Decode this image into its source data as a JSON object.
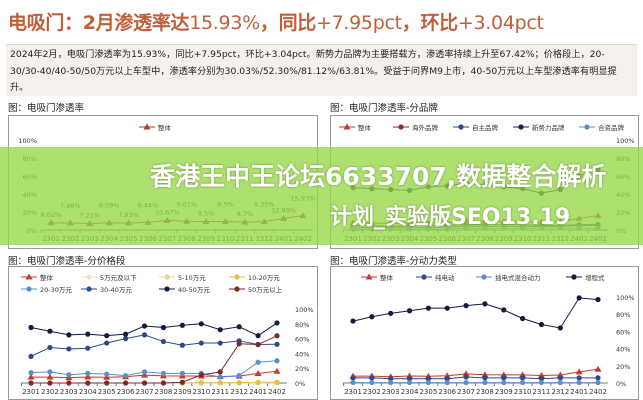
{
  "title": {
    "prefix": "电吸门：2月渗透率达",
    "rate": "15.93%",
    "mid": "，同比",
    "yoy": "+7.95pct",
    "sep": "，环比",
    "mom": "+3.04pct"
  },
  "summary": "2024年2月，电吸门渗透率为15.93%，同比+7.95pct，环比+3.04pct。新势力品牌为主要搭载方，渗透率持续上升至67.42%；价格段上，20-30/30-40/40-50/50万元以上车型中，渗透率分别为30.03%/52.30%/81.12%/63.81%。受益于问界M9上市，40-50万元以上车型渗透率有明显提升。",
  "banner": {
    "line1": "香港王中王论坛6633707,数据整合解析",
    "line2": "计划_实验版SEO13.19"
  },
  "chart_data": [
    {
      "type": "line",
      "title": "图：电吸门渗透率",
      "categories": [
        "2301",
        "2302",
        "2303",
        "2304",
        "2305",
        "2306",
        "2307",
        "2308",
        "2309",
        "2310",
        "2311",
        "2312",
        "2401",
        "2402"
      ],
      "ylim": [
        0,
        100
      ],
      "yticks": [
        "0%",
        "20%",
        "40%",
        "60%",
        "80%",
        "100%"
      ],
      "legend": "top",
      "data_labels": true,
      "series": [
        {
          "name": "整体",
          "color": "#b03a2e",
          "marker": "triangle",
          "values": [
            8.02,
            7.98,
            7.21,
            8.09,
            7.83,
            8.44,
            10.67,
            9.61,
            9.5,
            9.5,
            8.7,
            9.35,
            12.89,
            15.93
          ],
          "labels": [
            "8.02%",
            "7.98%",
            "7.21%",
            "8.09%",
            "7.83%",
            "8.44%",
            "10.67%",
            "9.61%",
            "9.5%",
            "9.5%",
            "8.7%",
            "9.35%",
            "12.89%",
            "15.93%"
          ]
        }
      ]
    },
    {
      "type": "line",
      "title": "图：电吸门渗透率-分品牌",
      "categories": [
        "2301",
        "2302",
        "2303",
        "2304",
        "2305",
        "2306",
        "2307",
        "2308",
        "2309",
        "2310",
        "2311",
        "2312",
        "2401",
        "2402"
      ],
      "ylim": [
        0,
        100
      ],
      "yticks": [
        "0%",
        "20%",
        "40%",
        "60%",
        "80%",
        "100%"
      ],
      "legend": "top",
      "series": [
        {
          "name": "整体",
          "color": "#c0392b",
          "marker": "triangle",
          "values": [
            8.02,
            7.98,
            7.21,
            8.09,
            7.83,
            8.44,
            10.67,
            9.61,
            9.5,
            9.5,
            8.7,
            9.35,
            12.89,
            15.93
          ]
        },
        {
          "name": "海外品牌",
          "color": "#8b2a2a",
          "marker": "circle",
          "values": [
            5,
            5,
            4,
            5,
            5,
            5,
            6,
            6,
            6,
            6,
            5,
            5,
            6,
            6
          ]
        },
        {
          "name": "自主品牌",
          "color": "#2c4a8a",
          "marker": "circle",
          "values": [
            3,
            3,
            3,
            3,
            3,
            3,
            4,
            4,
            4,
            4,
            4,
            4,
            5,
            5
          ]
        },
        {
          "name": "新势力品牌",
          "color": "#1a1f4a",
          "marker": "circle",
          "values": [
            47,
            46,
            45,
            44,
            48,
            49,
            52,
            50,
            48,
            46,
            41,
            45,
            60,
            67.42
          ]
        },
        {
          "name": "合资品牌",
          "color": "#5b8fc7",
          "marker": "circle",
          "values": [
            1,
            1,
            1,
            1,
            1,
            1,
            2,
            2,
            2,
            2,
            2,
            2,
            2,
            2
          ]
        }
      ]
    },
    {
      "type": "line",
      "title": "图：电吸门渗透率-分价格段",
      "categories": [
        "2301",
        "2302",
        "2303",
        "2304",
        "2305",
        "2306",
        "2307",
        "2308",
        "2309",
        "2310",
        "2311",
        "2312",
        "2401",
        "2402"
      ],
      "ylim": [
        0,
        100
      ],
      "yticks": [
        "0%",
        "20%",
        "40%",
        "60%",
        "80%",
        "100%"
      ],
      "legend": "top",
      "series": [
        {
          "name": "整体",
          "color": "#c8382e",
          "marker": "triangle",
          "values": [
            8.02,
            7.98,
            7.21,
            8.09,
            7.83,
            8.44,
            10.67,
            9.61,
            9.5,
            9.5,
            8.7,
            9.35,
            12.89,
            15.93
          ]
        },
        {
          "name": "5万元及以下",
          "color": "#f3e2b0",
          "marker": "circle",
          "values": [
            0,
            0,
            0,
            0,
            0,
            0,
            0,
            0,
            0,
            0,
            0,
            0,
            0,
            0
          ]
        },
        {
          "name": "5-10万元",
          "color": "#e8d39a",
          "marker": "circle",
          "values": [
            0,
            0,
            0,
            0,
            0,
            0,
            0,
            0,
            0,
            0,
            0,
            0,
            0,
            0
          ]
        },
        {
          "name": "10-20万元",
          "color": "#e8c040",
          "marker": "circle",
          "values": [
            0,
            0,
            0,
            0,
            0,
            0,
            0,
            0,
            0,
            0.5,
            0.5,
            0.5,
            1,
            1
          ]
        },
        {
          "name": "20-30万元",
          "color": "#5b8fc7",
          "marker": "circle",
          "values": [
            14,
            15,
            11,
            13,
            12,
            10,
            15,
            13,
            13,
            13,
            8,
            10,
            28,
            30.03
          ]
        },
        {
          "name": "30-40万元",
          "color": "#2c4a8a",
          "marker": "circle",
          "values": [
            36,
            48,
            46,
            47,
            54,
            60,
            65,
            56,
            51,
            54,
            54,
            57,
            52,
            52.3
          ]
        },
        {
          "name": "40-50万元",
          "color": "#141a40",
          "marker": "circle",
          "values": [
            75,
            70,
            65,
            66,
            64,
            66,
            77,
            75,
            78,
            80,
            72,
            76,
            64,
            81.12
          ]
        },
        {
          "name": "50万元以上",
          "color": "#7a2a2a",
          "marker": "circle",
          "values": [
            0,
            0,
            0,
            0,
            0,
            0,
            0,
            0,
            1,
            11,
            15,
            53,
            52,
            63.81
          ]
        }
      ]
    },
    {
      "type": "line",
      "title": "图：电吸门渗透率-分动力类型",
      "categories": [
        "2301",
        "2302",
        "2303",
        "2304",
        "2305",
        "2306",
        "2307",
        "2308",
        "2309",
        "2310",
        "2311",
        "2312",
        "2401",
        "2402"
      ],
      "ylim": [
        0,
        100
      ],
      "yticks": [
        "0%",
        "20%",
        "40%",
        "60%",
        "80%",
        "100%"
      ],
      "legend": "top",
      "series": [
        {
          "name": "整体",
          "color": "#c8382e",
          "marker": "triangle",
          "values": [
            8.02,
            7.98,
            7.21,
            8.09,
            7.83,
            8.44,
            10.67,
            9.61,
            9.5,
            9.5,
            8.7,
            9.35,
            12.89,
            15.93
          ]
        },
        {
          "name": "纯电动",
          "color": "#2c4a8a",
          "marker": "circle",
          "values": [
            6,
            6,
            5,
            5,
            5,
            5,
            7,
            6,
            6,
            6,
            5,
            6,
            6,
            6
          ]
        },
        {
          "name": "插电式混合动力",
          "color": "#5b8fc7",
          "marker": "circle",
          "values": [
            0.5,
            0.5,
            0.5,
            0.5,
            0.5,
            0.5,
            0.5,
            0.5,
            0.5,
            0.5,
            0.5,
            0.5,
            0.5,
            0.5
          ]
        },
        {
          "name": "增程式",
          "color": "#141a40",
          "marker": "circle",
          "values": [
            72,
            77,
            81,
            84,
            87,
            87,
            90,
            92,
            85,
            75,
            68,
            64,
            99,
            97
          ]
        }
      ]
    }
  ]
}
